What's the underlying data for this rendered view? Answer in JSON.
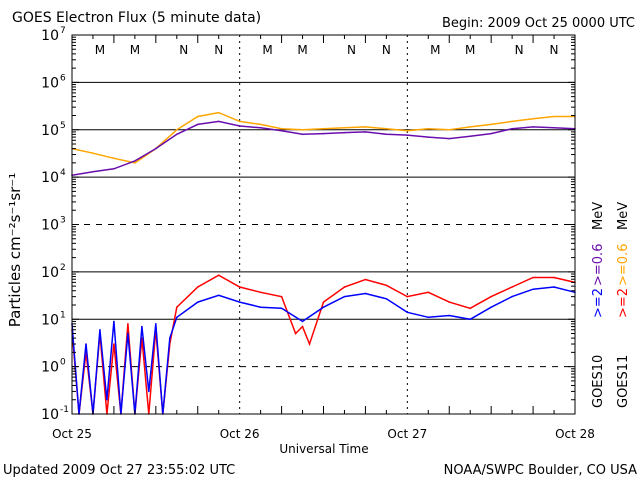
{
  "chart_data": {
    "type": "line",
    "title": "GOES Electron Flux (5 minute data)",
    "begin_label": "Begin: 2009 Oct 25 0000 UTC",
    "xlabel": "Universal Time",
    "ylabel": "Particles cm⁻²s⁻¹sr⁻¹",
    "yscale": "log",
    "ylim": [
      0.1,
      10000000
    ],
    "xlim_hours": [
      0,
      72
    ],
    "x_ticks": [
      {
        "hour": 0,
        "label": "Oct 25"
      },
      {
        "hour": 24,
        "label": "Oct 26"
      },
      {
        "hour": 48,
        "label": "Oct 27"
      },
      {
        "hour": 72,
        "label": "Oct 28"
      }
    ],
    "y_ticks": [
      {
        "exp": 7,
        "base": "10",
        "sup": "7"
      },
      {
        "exp": 6,
        "base": "10",
        "sup": "6"
      },
      {
        "exp": 5,
        "base": "10",
        "sup": "5"
      },
      {
        "exp": 4,
        "base": "10",
        "sup": "4"
      },
      {
        "exp": 3,
        "base": "10",
        "sup": "3"
      },
      {
        "exp": 2,
        "base": "10",
        "sup": "2"
      },
      {
        "exp": 1,
        "base": "10",
        "sup": "1"
      },
      {
        "exp": 0,
        "base": "10",
        "sup": "0"
      },
      {
        "exp": -1,
        "base": "10",
        "sup": "-1"
      }
    ],
    "grid": {
      "solid": [
        6,
        5,
        4,
        2,
        1
      ],
      "dashed": [
        3,
        0
      ],
      "vertical_dashed_hours": [
        24,
        48
      ]
    },
    "eclipse_markers": [
      {
        "hour": 4,
        "label": "M",
        "color": "#0000ff"
      },
      {
        "hour": 9,
        "label": "M",
        "color": "#ff0000"
      },
      {
        "hour": 16,
        "label": "N",
        "color": "#0000ff"
      },
      {
        "hour": 21,
        "label": "N",
        "color": "#ff0000"
      },
      {
        "hour": 28,
        "label": "M",
        "color": "#0000ff"
      },
      {
        "hour": 33,
        "label": "M",
        "color": "#ff0000"
      },
      {
        "hour": 40,
        "label": "N",
        "color": "#0000ff"
      },
      {
        "hour": 45,
        "label": "N",
        "color": "#ff0000"
      },
      {
        "hour": 52,
        "label": "M",
        "color": "#0000ff"
      },
      {
        "hour": 57,
        "label": "M",
        "color": "#ff0000"
      },
      {
        "hour": 64,
        "label": "N",
        "color": "#0000ff"
      },
      {
        "hour": 69,
        "label": "N",
        "color": "#ff0000"
      }
    ],
    "series": [
      {
        "name": "GOES11 >=0.6 MeV",
        "color": "#ffa500",
        "hours": [
          0,
          3,
          6,
          9,
          12,
          15,
          18,
          21,
          24,
          27,
          30,
          33,
          36,
          39,
          42,
          45,
          48,
          51,
          54,
          57,
          60,
          63,
          66,
          69,
          72
        ],
        "values": [
          40000,
          32000,
          25000,
          20000,
          40000,
          100000,
          190000,
          230000,
          150000,
          130000,
          105000,
          100000,
          105000,
          110000,
          115000,
          105000,
          95000,
          105000,
          100000,
          115000,
          130000,
          150000,
          170000,
          190000,
          190000
        ]
      },
      {
        "name": "GOES10 >=0.6 MeV",
        "color": "#6a0dad",
        "hours": [
          0,
          3,
          6,
          9,
          12,
          15,
          18,
          21,
          24,
          27,
          30,
          33,
          36,
          39,
          42,
          45,
          48,
          51,
          54,
          57,
          60,
          63,
          66,
          69,
          72
        ],
        "values": [
          11000,
          13000,
          15000,
          22000,
          40000,
          80000,
          130000,
          150000,
          120000,
          110000,
          95000,
          80000,
          83000,
          87000,
          90000,
          80000,
          77000,
          70000,
          65000,
          73000,
          83000,
          105000,
          115000,
          110000,
          105000
        ]
      },
      {
        "name": "GOES11 >=2 MeV",
        "color": "#ff0000",
        "hours": [
          0,
          1,
          2,
          3,
          4,
          5,
          6,
          7,
          8,
          9,
          10,
          11,
          12,
          13,
          14,
          15,
          18,
          21,
          24,
          27,
          30,
          32,
          33,
          34,
          36,
          39,
          42,
          45,
          48,
          51,
          54,
          57,
          60,
          63,
          66,
          69,
          72
        ],
        "values": [
          6,
          0.1,
          2,
          0.1,
          5,
          0.1,
          3,
          0.1,
          8,
          0.1,
          4,
          0.1,
          6,
          0.1,
          3,
          18,
          48,
          85,
          48,
          37,
          30,
          5,
          7,
          3,
          23,
          48,
          69,
          52,
          30,
          37,
          23,
          17,
          30,
          48,
          76,
          76,
          60
        ]
      },
      {
        "name": "GOES10 >=2 MeV",
        "color": "#0000ff",
        "hours": [
          0,
          1,
          2,
          3,
          4,
          5,
          6,
          7,
          8,
          9,
          10,
          11,
          12,
          13,
          14,
          15,
          18,
          21,
          24,
          27,
          30,
          33,
          36,
          39,
          42,
          45,
          48,
          51,
          54,
          57,
          60,
          63,
          66,
          69,
          72
        ],
        "values": [
          8,
          0.1,
          3,
          0.1,
          6,
          0.2,
          9,
          0.1,
          5,
          0.1,
          7,
          0.3,
          8,
          0.1,
          4,
          11,
          23,
          32,
          23,
          18,
          17,
          9,
          18,
          30,
          35,
          27,
          14,
          11,
          12,
          10,
          18,
          30,
          43,
          48,
          37
        ]
      }
    ],
    "legend": {
      "placement": "right",
      "goes10": {
        "sat": "GOES10",
        "ch1": ">=2",
        "ch1_color": "#0000ff",
        "ch2": ">=0.6",
        "ch2_color": "#6a0dad",
        "unit": "MeV"
      },
      "goes11": {
        "sat": "GOES11",
        "ch1": ">=2",
        "ch1_color": "#ff0000",
        "ch2": ">=0.6",
        "ch2_color": "#ffa500",
        "unit": "MeV"
      }
    }
  },
  "footer": {
    "updated": "Updated 2009 Oct 27 23:55:02 UTC",
    "credit": "NOAA/SWPC Boulder, CO USA"
  }
}
